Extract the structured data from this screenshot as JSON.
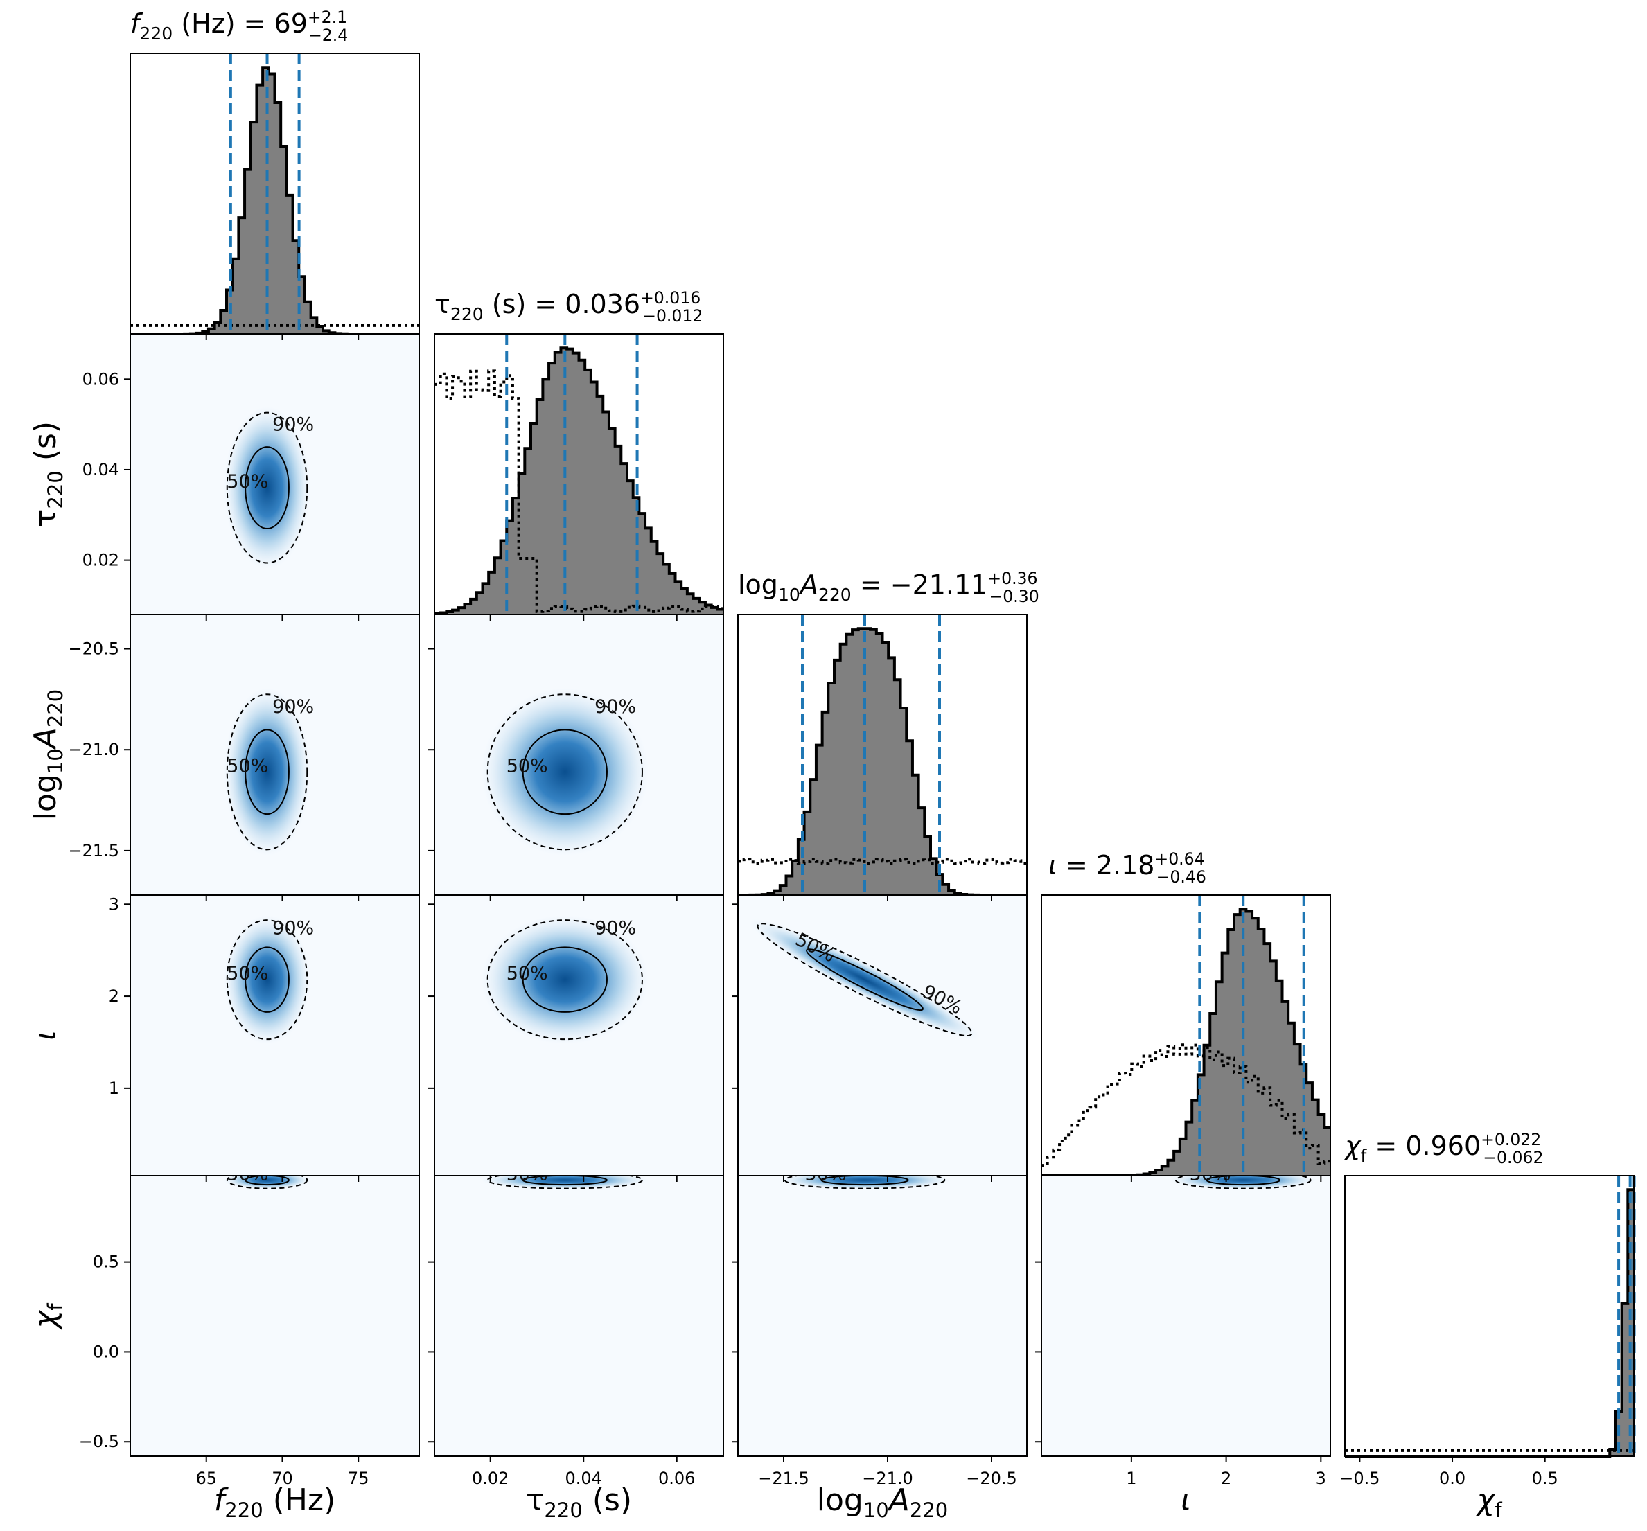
{
  "chart_data": {
    "type": "corner",
    "parameters": [
      {
        "key": "f220",
        "label": "f",
        "label_sub": "220",
        "label_suffix": " (Hz)",
        "title_eq": " (Hz) = 69",
        "title_up": "+2.1",
        "title_dn": "−2.4",
        "range": [
          60,
          79
        ],
        "ticks": [
          "65",
          "70",
          "75"
        ],
        "tick_values": [
          65,
          70,
          75
        ],
        "median": 69,
        "q_lo": 66.6,
        "q_hi": 71.1,
        "sigma": 1.3,
        "label_style": "italic"
      },
      {
        "key": "tau220",
        "label": "τ",
        "label_sub": "220",
        "label_suffix": " (s)",
        "title_eq": " (s) = 0.036",
        "title_up": "+0.016",
        "title_dn": "−0.012",
        "range": [
          0.008,
          0.07
        ],
        "ticks": [
          "0.02",
          "0.04",
          "0.06"
        ],
        "tick_values": [
          0.02,
          0.04,
          0.06
        ],
        "median": 0.036,
        "q_lo": 0.0235,
        "q_hi": 0.0515,
        "sigma": 0.0082,
        "label_style": "normal"
      },
      {
        "key": "logA220",
        "label": "log",
        "label_sub": "10",
        "label_suffix": "A",
        "label_suffix_sub": "220",
        "title_eq": " = −21.11",
        "title_up": "+0.36",
        "title_dn": "−0.30",
        "range": [
          -21.72,
          -20.33
        ],
        "ticks": [
          "−21.5",
          "−21.0",
          "−20.5"
        ],
        "tick_values": [
          -21.5,
          -21.0,
          -20.5
        ],
        "median": -21.11,
        "q_lo": -21.41,
        "q_hi": -20.75,
        "sigma": 0.19,
        "label_style": "normal"
      },
      {
        "key": "iota",
        "label": "ι",
        "title_eq": " = 2.18",
        "title_up": "+0.64",
        "title_dn": "−0.46",
        "range": [
          0.05,
          3.1
        ],
        "ticks": [
          "1",
          "2",
          "3"
        ],
        "tick_values": [
          1,
          2,
          3
        ],
        "median": 2.18,
        "q_lo": 1.72,
        "q_hi": 2.82,
        "sigma": 0.32,
        "label_style": "italic"
      },
      {
        "key": "chif",
        "label": "χ",
        "label_sub": "f",
        "title_eq": " = 0.960",
        "title_up": "+0.022",
        "title_dn": "−0.062",
        "range": [
          -0.58,
          0.98
        ],
        "ticks": [
          "−0.5",
          "0.0",
          "0.5"
        ],
        "tick_values": [
          -0.5,
          0.0,
          0.5
        ],
        "median": 0.96,
        "q_lo": 0.898,
        "q_hi": 0.982,
        "sigma": 0.03,
        "label_style": "italic"
      }
    ],
    "contour_labels": {
      "fifty": "50%",
      "ninety": "90%"
    },
    "legend_note": "",
    "colors": {
      "hist_fill": "#808080",
      "quantile_line": "#1f77b4",
      "density_cmap": "Blues"
    }
  }
}
